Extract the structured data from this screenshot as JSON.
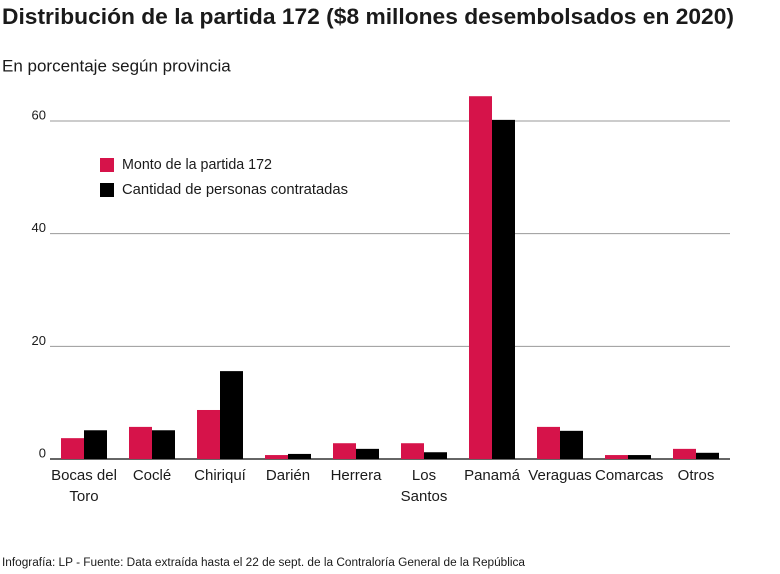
{
  "chart_data": {
    "type": "bar",
    "title": "Distribución de la partida 172 ($8 millones desembolsados en 2020)",
    "subtitle": "En porcentaje según provincia",
    "categories": [
      "Bocas del Toro",
      "Coclé",
      "Chiriquí",
      "Darién",
      "Herrera",
      "Los Santos",
      "Panamá",
      "Veraguas",
      "Comarcas",
      "Otros"
    ],
    "series": [
      {
        "name": "Monto de la partida 172",
        "color": "#d6134a",
        "values": [
          3.7,
          5.7,
          8.7,
          0.7,
          2.8,
          2.8,
          64.4,
          5.7,
          0.7,
          1.8
        ]
      },
      {
        "name": "Cantidad de personas contratadas",
        "color": "#000000",
        "values": [
          5.1,
          5.1,
          15.6,
          0.9,
          1.8,
          1.2,
          60.2,
          5.0,
          0.7,
          1.1
        ]
      }
    ],
    "ylim": [
      0,
      65
    ],
    "yticks": [
      0,
      20,
      40,
      60
    ],
    "grid": true,
    "footer": "Infografía: LP - Fuente: Data extraída hasta el 22 de sept. de la Contraloría General de la República"
  }
}
